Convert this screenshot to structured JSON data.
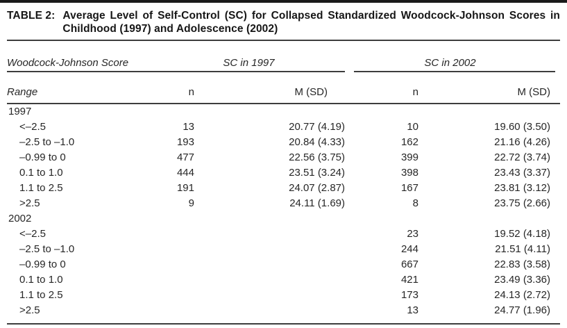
{
  "table": {
    "label": "TABLE 2:",
    "title_lines": [
      "Average Level of Self-Control (SC) for Collapsed Standardized Woodcock-Johnson Scores in",
      "Childhood (1997) and Adolescence (2002)"
    ],
    "col_group_header": "Woodcock-Johnson Score",
    "group_headers": [
      "SC in 1997",
      "SC in 2002"
    ],
    "subheaders": {
      "range": "Range",
      "n": "n",
      "msd": "M (SD)"
    },
    "sections": [
      {
        "label": "1997",
        "rows": [
          {
            "range": "<–2.5",
            "n1997": "13",
            "msd1997": "20.77 (4.19)",
            "n2002": "10",
            "msd2002": "19.60 (3.50)"
          },
          {
            "range": "–2.5 to –1.0",
            "n1997": "193",
            "msd1997": "20.84 (4.33)",
            "n2002": "162",
            "msd2002": "21.16 (4.26)"
          },
          {
            "range": "–0.99 to 0",
            "n1997": "477",
            "msd1997": "22.56 (3.75)",
            "n2002": "399",
            "msd2002": "22.72 (3.74)"
          },
          {
            "range": "0.1 to 1.0",
            "n1997": "444",
            "msd1997": "23.51 (3.24)",
            "n2002": "398",
            "msd2002": "23.43 (3.37)"
          },
          {
            "range": "1.1 to 2.5",
            "n1997": "191",
            "msd1997": "24.07 (2.87)",
            "n2002": "167",
            "msd2002": "23.81 (3.12)"
          },
          {
            "range": ">2.5",
            "n1997": "9",
            "msd1997": "24.11 (1.69)",
            "n2002": "8",
            "msd2002": "23.75 (2.66)"
          }
        ]
      },
      {
        "label": "2002",
        "rows": [
          {
            "range": "<–2.5",
            "n1997": "",
            "msd1997": "",
            "n2002": "23",
            "msd2002": "19.52 (4.18)"
          },
          {
            "range": "–2.5 to –1.0",
            "n1997": "",
            "msd1997": "",
            "n2002": "244",
            "msd2002": "21.51 (4.11)"
          },
          {
            "range": "–0.99 to 0",
            "n1997": "",
            "msd1997": "",
            "n2002": "667",
            "msd2002": "22.83 (3.58)"
          },
          {
            "range": "0.1 to 1.0",
            "n1997": "",
            "msd1997": "",
            "n2002": "421",
            "msd2002": "23.49 (3.36)"
          },
          {
            "range": "1.1 to 2.5",
            "n1997": "",
            "msd1997": "",
            "n2002": "173",
            "msd2002": "24.13 (2.72)"
          },
          {
            "range": ">2.5",
            "n1997": "",
            "msd1997": "",
            "n2002": "13",
            "msd2002": "24.77 (1.96)"
          }
        ]
      }
    ]
  },
  "colors": {
    "background": "#ffffff",
    "text": "#262626",
    "title_text": "#161616",
    "rule": "#3d3d3d",
    "top_bar": "#1a1a1a"
  }
}
